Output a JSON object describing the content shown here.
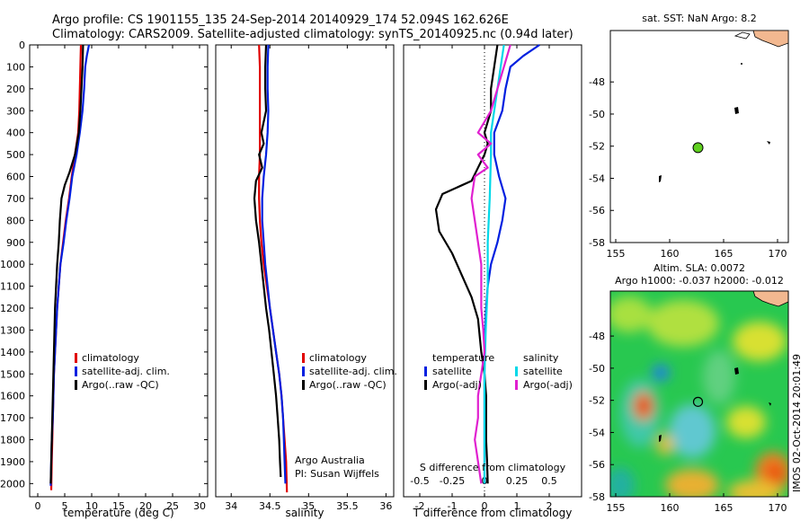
{
  "header": {
    "line1": "Argo profile: CS 1901155_135 24-Sep-2014 20140929_174 52.094S 162.626E",
    "line2": "Climatology: CARS2009. Satellite-adjusted climatology: synTS_20140925.nc (0.94d later)"
  },
  "colors": {
    "red": "#e00000",
    "blue": "#0020e0",
    "black": "#000000",
    "cyan": "#00d8e8",
    "magenta": "#e020d0",
    "green": "#60d020",
    "land": "#f2b890"
  },
  "depth_axis": {
    "range": [
      0,
      2060
    ],
    "ticks": [
      0,
      100,
      200,
      300,
      400,
      500,
      600,
      700,
      800,
      900,
      1000,
      1100,
      1200,
      1300,
      1400,
      1500,
      1600,
      1700,
      1800,
      1900,
      2000
    ]
  },
  "legend": {
    "climatology": "climatology",
    "satellite": "satellite-adj. clim.",
    "argo": "Argo(..raw -QC)"
  },
  "diff_legend": {
    "temperature": "temperature",
    "salinity": "salinity",
    "satellite": "satellite",
    "argo_adj": "Argo(-adj)"
  },
  "credits": {
    "org": "Argo Australia",
    "pi": "PI: Susan Wijffels"
  },
  "footer": {
    "imos": "IMOS 02-Oct-2014 20:01:49"
  },
  "chart_data": [
    {
      "type": "line",
      "id": "temperature",
      "xlabel": "temperature (deg C)",
      "ylabel": "",
      "xlim": [
        -1.5,
        31.5
      ],
      "ylim": [
        2060,
        0
      ],
      "xticks": [
        0,
        5,
        10,
        15,
        20,
        25,
        30
      ],
      "series": [
        {
          "name": "climatology",
          "color": "#e00000",
          "points": [
            [
              8.0,
              0
            ],
            [
              7.9,
              100
            ],
            [
              7.8,
              200
            ],
            [
              7.7,
              300
            ],
            [
              7.5,
              400
            ],
            [
              6.9,
              500
            ],
            [
              6.3,
              600
            ],
            [
              5.8,
              700
            ],
            [
              5.2,
              800
            ],
            [
              4.7,
              900
            ],
            [
              4.2,
              1000
            ],
            [
              3.9,
              1100
            ],
            [
              3.6,
              1200
            ],
            [
              3.4,
              1300
            ],
            [
              3.2,
              1400
            ],
            [
              3.0,
              1500
            ],
            [
              2.9,
              1600
            ],
            [
              2.8,
              1700
            ],
            [
              2.7,
              1800
            ],
            [
              2.6,
              1900
            ],
            [
              2.5,
              2030
            ]
          ]
        },
        {
          "name": "satellite-adj. clim.",
          "color": "#0020e0",
          "points": [
            [
              9.5,
              0
            ],
            [
              9.1,
              50
            ],
            [
              8.8,
              100
            ],
            [
              8.6,
              200
            ],
            [
              8.3,
              300
            ],
            [
              7.8,
              400
            ],
            [
              7.2,
              500
            ],
            [
              6.4,
              600
            ],
            [
              5.9,
              700
            ],
            [
              5.3,
              800
            ],
            [
              4.8,
              900
            ],
            [
              4.2,
              1000
            ],
            [
              3.9,
              1100
            ],
            [
              3.6,
              1200
            ],
            [
              3.4,
              1300
            ],
            [
              3.2,
              1400
            ],
            [
              3.0,
              1500
            ],
            [
              2.9,
              1600
            ],
            [
              2.8,
              1700
            ],
            [
              2.6,
              1800
            ],
            [
              2.5,
              1900
            ],
            [
              2.4,
              2010
            ]
          ]
        },
        {
          "name": "Argo(..raw -QC)",
          "color": "#000000",
          "points": [
            [
              8.4,
              0
            ],
            [
              8.3,
              100
            ],
            [
              8.1,
              200
            ],
            [
              7.9,
              300
            ],
            [
              7.6,
              400
            ],
            [
              6.9,
              500
            ],
            [
              5.9,
              580
            ],
            [
              5.0,
              640
            ],
            [
              4.4,
              700
            ],
            [
              4.1,
              800
            ],
            [
              3.9,
              900
            ],
            [
              3.6,
              1000
            ],
            [
              3.4,
              1100
            ],
            [
              3.2,
              1200
            ],
            [
              3.1,
              1300
            ],
            [
              3.0,
              1400
            ],
            [
              2.9,
              1500
            ],
            [
              2.8,
              1600
            ],
            [
              2.7,
              1700
            ],
            [
              2.6,
              1800
            ],
            [
              2.5,
              1900
            ],
            [
              2.4,
              2000
            ]
          ]
        }
      ]
    },
    {
      "type": "line",
      "id": "salinity",
      "xlabel": "salinity",
      "ylabel": "",
      "xlim": [
        33.8,
        36.1
      ],
      "ylim": [
        2060,
        0
      ],
      "xticks": [
        34,
        34.5,
        35,
        35.5,
        36
      ],
      "series": [
        {
          "name": "climatology",
          "color": "#e00000",
          "points": [
            [
              34.36,
              0
            ],
            [
              34.37,
              100
            ],
            [
              34.37,
              200
            ],
            [
              34.37,
              300
            ],
            [
              34.37,
              400
            ],
            [
              34.37,
              500
            ],
            [
              34.36,
              600
            ],
            [
              34.36,
              700
            ],
            [
              34.37,
              800
            ],
            [
              34.39,
              900
            ],
            [
              34.42,
              1000
            ],
            [
              34.46,
              1100
            ],
            [
              34.5,
              1200
            ],
            [
              34.54,
              1300
            ],
            [
              34.58,
              1400
            ],
            [
              34.62,
              1500
            ],
            [
              34.65,
              1600
            ],
            [
              34.67,
              1700
            ],
            [
              34.69,
              1800
            ],
            [
              34.71,
              1900
            ],
            [
              34.72,
              2040
            ]
          ]
        },
        {
          "name": "satellite-adj. clim.",
          "color": "#0020e0",
          "points": [
            [
              34.48,
              0
            ],
            [
              34.47,
              100
            ],
            [
              34.47,
              200
            ],
            [
              34.48,
              300
            ],
            [
              34.47,
              400
            ],
            [
              34.45,
              500
            ],
            [
              34.42,
              600
            ],
            [
              34.4,
              700
            ],
            [
              34.4,
              800
            ],
            [
              34.42,
              900
            ],
            [
              34.44,
              1000
            ],
            [
              34.47,
              1100
            ],
            [
              34.5,
              1200
            ],
            [
              34.54,
              1300
            ],
            [
              34.58,
              1400
            ],
            [
              34.62,
              1500
            ],
            [
              34.65,
              1600
            ],
            [
              34.67,
              1700
            ],
            [
              34.68,
              1800
            ],
            [
              34.69,
              1900
            ],
            [
              34.7,
              2000
            ]
          ]
        },
        {
          "name": "Argo(..raw -QC)",
          "color": "#000000",
          "points": [
            [
              34.45,
              0
            ],
            [
              34.44,
              100
            ],
            [
              34.44,
              200
            ],
            [
              34.45,
              300
            ],
            [
              34.39,
              400
            ],
            [
              34.42,
              450
            ],
            [
              34.36,
              500
            ],
            [
              34.4,
              560
            ],
            [
              34.32,
              620
            ],
            [
              34.3,
              700
            ],
            [
              34.32,
              800
            ],
            [
              34.36,
              900
            ],
            [
              34.39,
              1000
            ],
            [
              34.42,
              1100
            ],
            [
              34.45,
              1200
            ],
            [
              34.49,
              1300
            ],
            [
              34.52,
              1400
            ],
            [
              34.55,
              1500
            ],
            [
              34.58,
              1600
            ],
            [
              34.6,
              1700
            ],
            [
              34.62,
              1800
            ],
            [
              34.63,
              1900
            ],
            [
              34.64,
              1970
            ]
          ]
        }
      ]
    },
    {
      "type": "line",
      "id": "difference",
      "xlabel": "T difference from climatology",
      "x2label": "S difference from climatology",
      "ylabel": "",
      "xlim": [
        -2.5,
        3.0
      ],
      "ylim": [
        2060,
        0
      ],
      "xticks": [
        -2,
        -1,
        0,
        1,
        2
      ],
      "x2ticks": [
        -0.5,
        -0.25,
        0,
        0.25,
        0.5
      ],
      "x2ticklabels": [
        "-0.5",
        "-0.25",
        "0",
        "0.25",
        "0.5"
      ],
      "series": [
        {
          "name": "temperature satellite",
          "color": "#0020e0",
          "points": [
            [
              1.7,
              0
            ],
            [
              1.2,
              50
            ],
            [
              0.8,
              100
            ],
            [
              0.65,
              200
            ],
            [
              0.55,
              300
            ],
            [
              0.3,
              400
            ],
            [
              0.3,
              500
            ],
            [
              0.45,
              600
            ],
            [
              0.65,
              700
            ],
            [
              0.55,
              800
            ],
            [
              0.4,
              900
            ],
            [
              0.2,
              1000
            ],
            [
              0.1,
              1100
            ],
            [
              0.05,
              1200
            ],
            [
              0.02,
              1300
            ],
            [
              0,
              1400
            ],
            [
              0,
              1500
            ],
            [
              0,
              1600
            ],
            [
              0,
              1700
            ],
            [
              0,
              1800
            ],
            [
              0,
              1900
            ],
            [
              0,
              2000
            ]
          ]
        },
        {
          "name": "temperature Argo(-adj)",
          "color": "#000000",
          "points": [
            [
              0.4,
              0
            ],
            [
              0.3,
              100
            ],
            [
              0.2,
              200
            ],
            [
              0.2,
              300
            ],
            [
              0.0,
              400
            ],
            [
              0.1,
              450
            ],
            [
              0.0,
              500
            ],
            [
              -0.2,
              560
            ],
            [
              -0.4,
              620
            ],
            [
              -1.3,
              680
            ],
            [
              -1.5,
              750
            ],
            [
              -1.4,
              850
            ],
            [
              -1.0,
              950
            ],
            [
              -0.7,
              1050
            ],
            [
              -0.4,
              1150
            ],
            [
              -0.2,
              1250
            ],
            [
              -0.1,
              1400
            ],
            [
              0,
              1500
            ],
            [
              0.05,
              1600
            ],
            [
              0.05,
              1700
            ],
            [
              0.05,
              1800
            ],
            [
              0.08,
              1900
            ],
            [
              0.1,
              2000
            ]
          ]
        },
        {
          "name": "salinity satellite",
          "color": "#00d8e8",
          "points": [
            [
              0.3,
              0
            ],
            [
              0.25,
              100
            ],
            [
              0.2,
              200
            ],
            [
              0.15,
              300
            ],
            [
              0.1,
              400
            ],
            [
              0.1,
              500
            ],
            [
              0.08,
              700
            ],
            [
              0.05,
              900
            ],
            [
              0.05,
              1100
            ],
            [
              0.02,
              1300
            ],
            [
              0,
              1500
            ],
            [
              0,
              1700
            ],
            [
              0,
              1900
            ],
            [
              0,
              2000
            ]
          ]
        },
        {
          "name": "salinity Argo(-adj)",
          "color": "#e020d0",
          "points": [
            [
              0.4,
              0
            ],
            [
              0.3,
              100
            ],
            [
              0.2,
              200
            ],
            [
              0.1,
              300
            ],
            [
              0.0,
              350
            ],
            [
              -0.1,
              400
            ],
            [
              0.1,
              450
            ],
            [
              -0.1,
              500
            ],
            [
              0.05,
              560
            ],
            [
              -0.15,
              600
            ],
            [
              -0.2,
              700
            ],
            [
              -0.15,
              800
            ],
            [
              -0.1,
              900
            ],
            [
              -0.05,
              1000
            ],
            [
              -0.05,
              1100
            ],
            [
              -0.05,
              1200
            ],
            [
              -0.02,
              1300
            ],
            [
              0,
              1400
            ],
            [
              -0.05,
              1500
            ],
            [
              -0.1,
              1600
            ],
            [
              -0.1,
              1700
            ],
            [
              -0.15,
              1800
            ],
            [
              -0.1,
              1900
            ],
            [
              -0.05,
              2000
            ]
          ]
        }
      ]
    },
    {
      "type": "scatter",
      "id": "sst_map",
      "title": "sat. SST: NaN Argo: 8.2",
      "xlim": [
        154.5,
        171
      ],
      "ylim": [
        -58,
        -44.8
      ],
      "xticks": [
        155,
        160,
        165,
        170
      ],
      "yticks": [
        -48,
        -50,
        -52,
        -54,
        -56,
        -58
      ],
      "argo_position": [
        162.626,
        -52.094
      ]
    },
    {
      "type": "heatmap",
      "id": "sla_map",
      "title": "Altim. SLA: 0.0072",
      "subtitle": "Argo h1000: -0.037 h2000: -0.012",
      "xlim": [
        154.5,
        171
      ],
      "ylim": [
        -58,
        -45.2
      ],
      "xticks": [
        155,
        160,
        165,
        170
      ],
      "yticks": [
        -48,
        -50,
        -52,
        -54,
        -56,
        -58
      ],
      "argo_position": [
        162.626,
        -52.094
      ]
    }
  ]
}
